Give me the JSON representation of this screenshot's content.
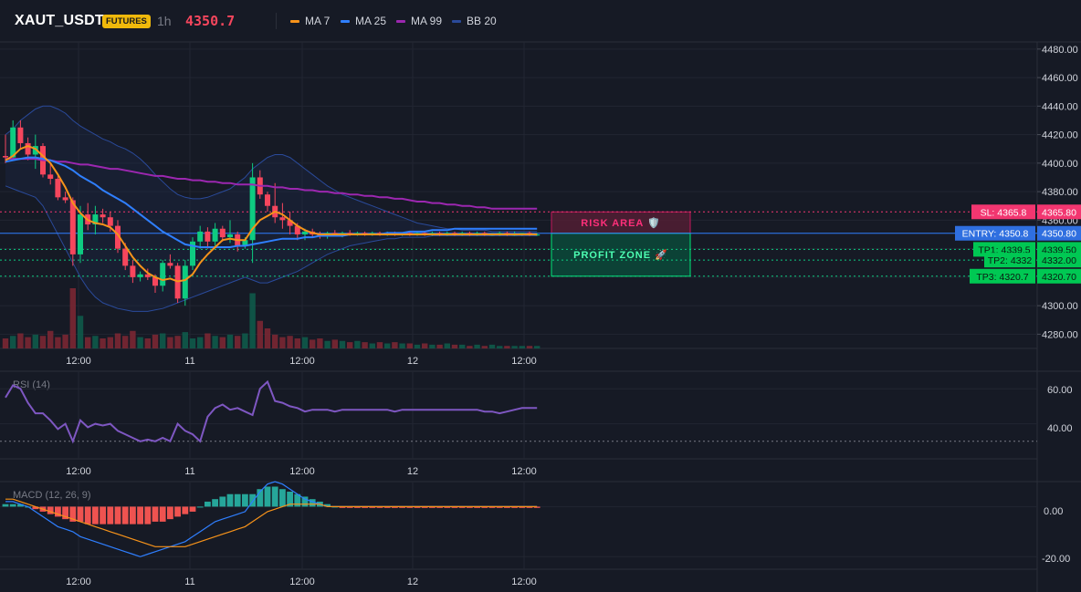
{
  "header": {
    "symbol": "XAUT_USDT",
    "badge": "FUTURES",
    "interval": "1h",
    "last_price": "4350.7",
    "legend": [
      {
        "label": "MA 7",
        "color": "#f7931a"
      },
      {
        "label": "MA 25",
        "color": "#2f7fff"
      },
      {
        "label": "MA 99",
        "color": "#9c27b0"
      },
      {
        "label": "BB 20",
        "color": "#2a4a9a"
      }
    ]
  },
  "colors": {
    "up": "#0ecb81",
    "down": "#f6465d",
    "grid": "#222632",
    "ma7": "#f7931a",
    "ma25": "#2f7fff",
    "ma99": "#9c27b0",
    "bb": "#2a4a9a",
    "rsi": "#7e57c2",
    "macd": "#2f7fff",
    "signal": "#f7931a"
  },
  "trade": {
    "sl_label": "SL: 4365.8",
    "sl_axis": "4365.80",
    "sl_value": 4365.8,
    "entry_label": "ENTRY: 4350.8",
    "entry_axis": "4350.80",
    "entry_value": 4350.8,
    "tp1_label": "TP1: 4339.5",
    "tp1_axis": "4339.50",
    "tp1_value": 4339.5,
    "tp2_label": "TP2: 4332",
    "tp2_axis": "4332.00",
    "tp2_value": 4332,
    "tp3_label": "TP3: 4320.7",
    "tp3_axis": "4320.70",
    "tp3_value": 4320.7,
    "risk_label": "RISK AREA 🛡️",
    "profit_label": "PROFIT ZONE 🚀"
  },
  "time_axis": [
    "12:00",
    "11",
    "12:00",
    "12",
    "12:00"
  ],
  "panes": {
    "rsi_title": "RSI (14)",
    "rsi_ticks": [
      "60.00",
      "40.00"
    ],
    "macd_title": "MACD (12, 26, 9)",
    "macd_ticks": [
      "0.00",
      "-20.00"
    ]
  },
  "chart_data": [
    {
      "type": "candlestick",
      "title": "XAUT_USDT",
      "ylim": [
        4270,
        4485
      ],
      "y_ticks": [
        4280,
        4300,
        4320,
        4340,
        4360,
        4380,
        4400,
        4420,
        4440,
        4460,
        4480
      ],
      "x_ticks": [
        "12:00",
        "11",
        "12:00",
        "12",
        "12:00"
      ],
      "candles": [
        [
          4405,
          4420,
          4400,
          4404
        ],
        [
          4404,
          4430,
          4403,
          4425
        ],
        [
          4425,
          4430,
          4410,
          4414
        ],
        [
          4414,
          4418,
          4402,
          4406
        ],
        [
          4406,
          4420,
          4396,
          4412
        ],
        [
          4412,
          4414,
          4390,
          4392
        ],
        [
          4392,
          4400,
          4385,
          4389
        ],
        [
          4389,
          4392,
          4374,
          4376
        ],
        [
          4376,
          4380,
          4372,
          4374
        ],
        [
          4374,
          4376,
          4328,
          4336
        ],
        [
          4336,
          4370,
          4330,
          4364
        ],
        [
          4364,
          4372,
          4353,
          4357
        ],
        [
          4357,
          4370,
          4350,
          4364
        ],
        [
          4364,
          4368,
          4358,
          4362
        ],
        [
          4362,
          4366,
          4352,
          4356
        ],
        [
          4356,
          4360,
          4337,
          4340
        ],
        [
          4340,
          4344,
          4325,
          4328
        ],
        [
          4328,
          4332,
          4316,
          4320
        ],
        [
          4320,
          4324,
          4317,
          4322
        ],
        [
          4322,
          4326,
          4318,
          4320
        ],
        [
          4320,
          4322,
          4309,
          4314
        ],
        [
          4314,
          4332,
          4310,
          4330
        ],
        [
          4330,
          4336,
          4326,
          4328
        ],
        [
          4328,
          4330,
          4302,
          4305
        ],
        [
          4305,
          4332,
          4300,
          4328
        ],
        [
          4328,
          4348,
          4325,
          4345
        ],
        [
          4345,
          4356,
          4340,
          4352
        ],
        [
          4352,
          4355,
          4340,
          4345
        ],
        [
          4345,
          4358,
          4342,
          4354
        ],
        [
          4354,
          4356,
          4345,
          4348
        ],
        [
          4348,
          4360,
          4344,
          4350
        ],
        [
          4350,
          4352,
          4338,
          4342
        ],
        [
          4342,
          4348,
          4340,
          4346
        ],
        [
          4346,
          4400,
          4330,
          4390
        ],
        [
          4390,
          4395,
          4375,
          4378
        ],
        [
          4378,
          4380,
          4366,
          4370
        ],
        [
          4370,
          4386,
          4358,
          4362
        ],
        [
          4362,
          4372,
          4354,
          4360
        ],
        [
          4360,
          4366,
          4350,
          4356
        ],
        [
          4356,
          4358,
          4346,
          4350
        ],
        [
          4350,
          4354,
          4346,
          4352
        ],
        [
          4352,
          4354,
          4348,
          4350
        ],
        [
          4350,
          4352,
          4347,
          4349
        ],
        [
          4349,
          4352,
          4347,
          4351
        ],
        [
          4351,
          4353,
          4349,
          4350
        ],
        [
          4350,
          4352,
          4348,
          4351
        ],
        [
          4351,
          4353,
          4349,
          4350
        ],
        [
          4350,
          4352,
          4349,
          4351
        ],
        [
          4351,
          4352,
          4349,
          4350
        ],
        [
          4350,
          4352,
          4349,
          4351
        ],
        [
          4351,
          4352,
          4349,
          4350
        ],
        [
          4350,
          4352,
          4349,
          4351
        ],
        [
          4351,
          4352,
          4349,
          4350
        ],
        [
          4350,
          4351,
          4349,
          4351
        ],
        [
          4351,
          4352,
          4349,
          4350
        ],
        [
          4350,
          4352,
          4349,
          4351
        ],
        [
          4351,
          4352,
          4349,
          4350
        ],
        [
          4350,
          4352,
          4349,
          4351
        ],
        [
          4351,
          4352,
          4349,
          4350
        ],
        [
          4350,
          4352,
          4349,
          4351
        ],
        [
          4351,
          4352,
          4349,
          4350
        ],
        [
          4350,
          4352,
          4349,
          4351
        ],
        [
          4351,
          4352,
          4349,
          4350
        ],
        [
          4350,
          4352,
          4349,
          4351
        ],
        [
          4351,
          4352,
          4349,
          4350
        ],
        [
          4350,
          4351,
          4349,
          4350
        ],
        [
          4350,
          4352,
          4349,
          4351
        ],
        [
          4351,
          4352,
          4349,
          4350
        ],
        [
          4350,
          4352,
          4349,
          4350
        ],
        [
          4350,
          4351,
          4349,
          4351
        ],
        [
          4351,
          4352,
          4349,
          4350
        ],
        [
          4350,
          4351,
          4349,
          4350
        ]
      ],
      "volume": [
        8,
        10,
        12,
        9,
        11,
        10,
        14,
        9,
        11,
        48,
        26,
        9,
        10,
        8,
        9,
        12,
        10,
        14,
        9,
        8,
        11,
        12,
        9,
        10,
        13,
        8,
        9,
        12,
        10,
        9,
        11,
        10,
        12,
        44,
        22,
        16,
        11,
        9,
        10,
        8,
        9,
        7,
        8,
        6,
        7,
        6,
        5,
        6,
        5,
        4,
        5,
        4,
        5,
        4,
        4,
        3,
        4,
        3,
        3,
        4,
        3,
        3,
        2,
        3,
        2,
        3,
        2,
        2,
        2,
        2,
        2,
        2
      ],
      "ma7": [
        4402,
        4405,
        4410,
        4412,
        4410,
        4405,
        4400,
        4392,
        4383,
        4372,
        4365,
        4360,
        4358,
        4357,
        4355,
        4350,
        4342,
        4334,
        4328,
        4323,
        4320,
        4318,
        4319,
        4317,
        4318,
        4322,
        4330,
        4336,
        4341,
        4346,
        4347,
        4346,
        4346,
        4354,
        4360,
        4363,
        4366,
        4364,
        4360,
        4356,
        4353,
        4351,
        4350,
        4350,
        4350,
        4350,
        4350,
        4350,
        4350,
        4350,
        4350,
        4350,
        4350,
        4350,
        4350,
        4350,
        4350,
        4350,
        4350,
        4350,
        4350,
        4350,
        4350,
        4350,
        4350,
        4350,
        4350,
        4350,
        4350,
        4350,
        4350,
        4350
      ],
      "ma25": [
        4401,
        4402,
        4403,
        4404,
        4404,
        4403,
        4402,
        4400,
        4398,
        4395,
        4391,
        4388,
        4385,
        4381,
        4378,
        4375,
        4372,
        4368,
        4364,
        4360,
        4356,
        4352,
        4349,
        4346,
        4343,
        4342,
        4341,
        4341,
        4341,
        4341,
        4341,
        4342,
        4342,
        4343,
        4344,
        4345,
        4346,
        4347,
        4347,
        4347,
        4348,
        4348,
        4349,
        4349,
        4349,
        4349,
        4350,
        4350,
        4350,
        4350,
        4350,
        4351,
        4351,
        4351,
        4352,
        4352,
        4352,
        4353,
        4353,
        4353,
        4354,
        4354,
        4354,
        4354,
        4354,
        4354,
        4354,
        4354,
        4354,
        4354,
        4354,
        4354
      ],
      "ma99": [
        4403,
        4403,
        4403,
        4403,
        4403,
        4402,
        4402,
        4401,
        4401,
        4400,
        4399,
        4399,
        4398,
        4397,
        4396,
        4396,
        4395,
        4394,
        4393,
        4392,
        4391,
        4391,
        4390,
        4389,
        4389,
        4388,
        4388,
        4387,
        4387,
        4386,
        4386,
        4385,
        4385,
        4385,
        4384,
        4384,
        4383,
        4383,
        4382,
        4382,
        4381,
        4381,
        4380,
        4380,
        4379,
        4379,
        4378,
        4378,
        4377,
        4377,
        4376,
        4376,
        4375,
        4375,
        4374,
        4373,
        4373,
        4372,
        4372,
        4371,
        4371,
        4370,
        4370,
        4369,
        4369,
        4368,
        4368,
        4368,
        4368,
        4368,
        4368,
        4368
      ],
      "bb_upper": [
        4420,
        4424,
        4430,
        4434,
        4438,
        4440,
        4440,
        4438,
        4435,
        4430,
        4426,
        4423,
        4420,
        4417,
        4415,
        4412,
        4410,
        4407,
        4403,
        4398,
        4392,
        4387,
        4382,
        4378,
        4376,
        4375,
        4375,
        4376,
        4378,
        4380,
        4382,
        4386,
        4390,
        4396,
        4400,
        4404,
        4406,
        4406,
        4404,
        4400,
        4396,
        4392,
        4388,
        4384,
        4381,
        4378,
        4376,
        4374,
        4372,
        4370,
        4368,
        4366,
        4364,
        4362,
        4360,
        4358,
        4357,
        4356,
        4355,
        4354,
        4354,
        4353,
        4353,
        4353,
        4353,
        4352,
        4352,
        4352,
        4352,
        4352,
        4352,
        4352
      ],
      "bb_lower": [
        4384,
        4382,
        4380,
        4378,
        4376,
        4370,
        4360,
        4350,
        4340,
        4330,
        4320,
        4312,
        4306,
        4302,
        4300,
        4298,
        4297,
        4296,
        4296,
        4296,
        4297,
        4298,
        4300,
        4302,
        4304,
        4306,
        4308,
        4310,
        4312,
        4314,
        4316,
        4318,
        4320,
        4318,
        4316,
        4316,
        4318,
        4320,
        4322,
        4324,
        4327,
        4330,
        4333,
        4336,
        4338,
        4340,
        4342,
        4343,
        4344,
        4345,
        4346,
        4347,
        4347,
        4348,
        4348,
        4348,
        4348,
        4349,
        4349,
        4349,
        4349,
        4349,
        4349,
        4349,
        4349,
        4349,
        4349,
        4349,
        4349,
        4349,
        4349,
        4349
      ]
    },
    {
      "type": "line",
      "title": "RSI (14)",
      "ylim": [
        20,
        70
      ],
      "y_ticks": [
        40,
        60
      ],
      "oversold_level": 30,
      "values": [
        55,
        62,
        60,
        52,
        46,
        46,
        42,
        37,
        40,
        30,
        42,
        38,
        40,
        39,
        40,
        36,
        34,
        32,
        30,
        31,
        30,
        32,
        30,
        40,
        36,
        34,
        30,
        44,
        49,
        51,
        48,
        49,
        47,
        45,
        60,
        64,
        53,
        52,
        50,
        49,
        47,
        48,
        48,
        48,
        47,
        48,
        48,
        48,
        48,
        48,
        48,
        48,
        47,
        48,
        48,
        48,
        48,
        48,
        48,
        48,
        48,
        48,
        48,
        48,
        47,
        47,
        46,
        47,
        48,
        49,
        49,
        49
      ]
    },
    {
      "type": "bar",
      "title": "MACD (12, 26, 9)",
      "ylim": [
        -25,
        10
      ],
      "y_ticks": [
        0,
        -20
      ],
      "histogram": [
        1,
        1,
        1,
        0,
        -1,
        -2,
        -3,
        -4,
        -5,
        -6,
        -6,
        -7,
        -7,
        -7,
        -7,
        -7,
        -7,
        -7,
        -7,
        -7,
        -6,
        -6,
        -5,
        -4,
        -3,
        -2,
        0,
        2,
        3,
        4,
        5,
        5,
        5,
        5,
        7,
        8,
        8,
        7,
        6,
        5,
        4,
        3,
        2,
        1,
        0,
        -0.5,
        -0.5,
        -0.5,
        -0.5,
        -0.5,
        -0.5,
        -0.5,
        -0.5,
        -0.5,
        -0.5,
        -0.5,
        -0.5,
        -0.5,
        -0.5,
        -0.5,
        -0.5,
        -0.5,
        -0.5,
        -0.5,
        -0.5,
        -0.5,
        -0.5,
        -0.5,
        -0.5,
        -0.5,
        -0.5,
        -0.5
      ],
      "macd": [
        2,
        2,
        1,
        0,
        -2,
        -4,
        -6,
        -8,
        -9,
        -10,
        -12,
        -13,
        -14,
        -15,
        -16,
        -17,
        -18,
        -19,
        -20,
        -19,
        -18,
        -17,
        -16,
        -15,
        -14,
        -12,
        -10,
        -8,
        -6,
        -5,
        -4,
        -3,
        -2,
        2,
        6,
        9,
        10,
        9,
        7,
        5,
        3,
        2,
        1,
        0,
        0,
        0,
        0,
        0,
        0,
        0,
        0,
        0,
        0,
        0,
        0,
        0,
        0,
        0,
        0,
        0,
        0,
        0,
        0,
        0,
        0,
        0,
        0,
        0,
        0,
        0,
        0,
        0
      ],
      "signal": [
        3,
        3,
        2,
        1,
        0,
        -1,
        -2,
        -3,
        -4,
        -5,
        -6,
        -7,
        -8,
        -9,
        -10,
        -11,
        -12,
        -13,
        -14,
        -15,
        -16,
        -16,
        -16,
        -16,
        -16,
        -15,
        -14,
        -13,
        -12,
        -11,
        -10,
        -9,
        -8,
        -6,
        -4,
        -2,
        -1,
        0,
        1,
        1,
        1,
        1,
        1,
        0,
        0,
        0,
        0,
        0,
        0,
        0,
        0,
        0,
        0,
        0,
        0,
        0,
        0,
        0,
        0,
        0,
        0,
        0,
        0,
        0,
        0,
        0,
        0,
        0,
        0,
        0,
        0,
        0
      ]
    }
  ]
}
